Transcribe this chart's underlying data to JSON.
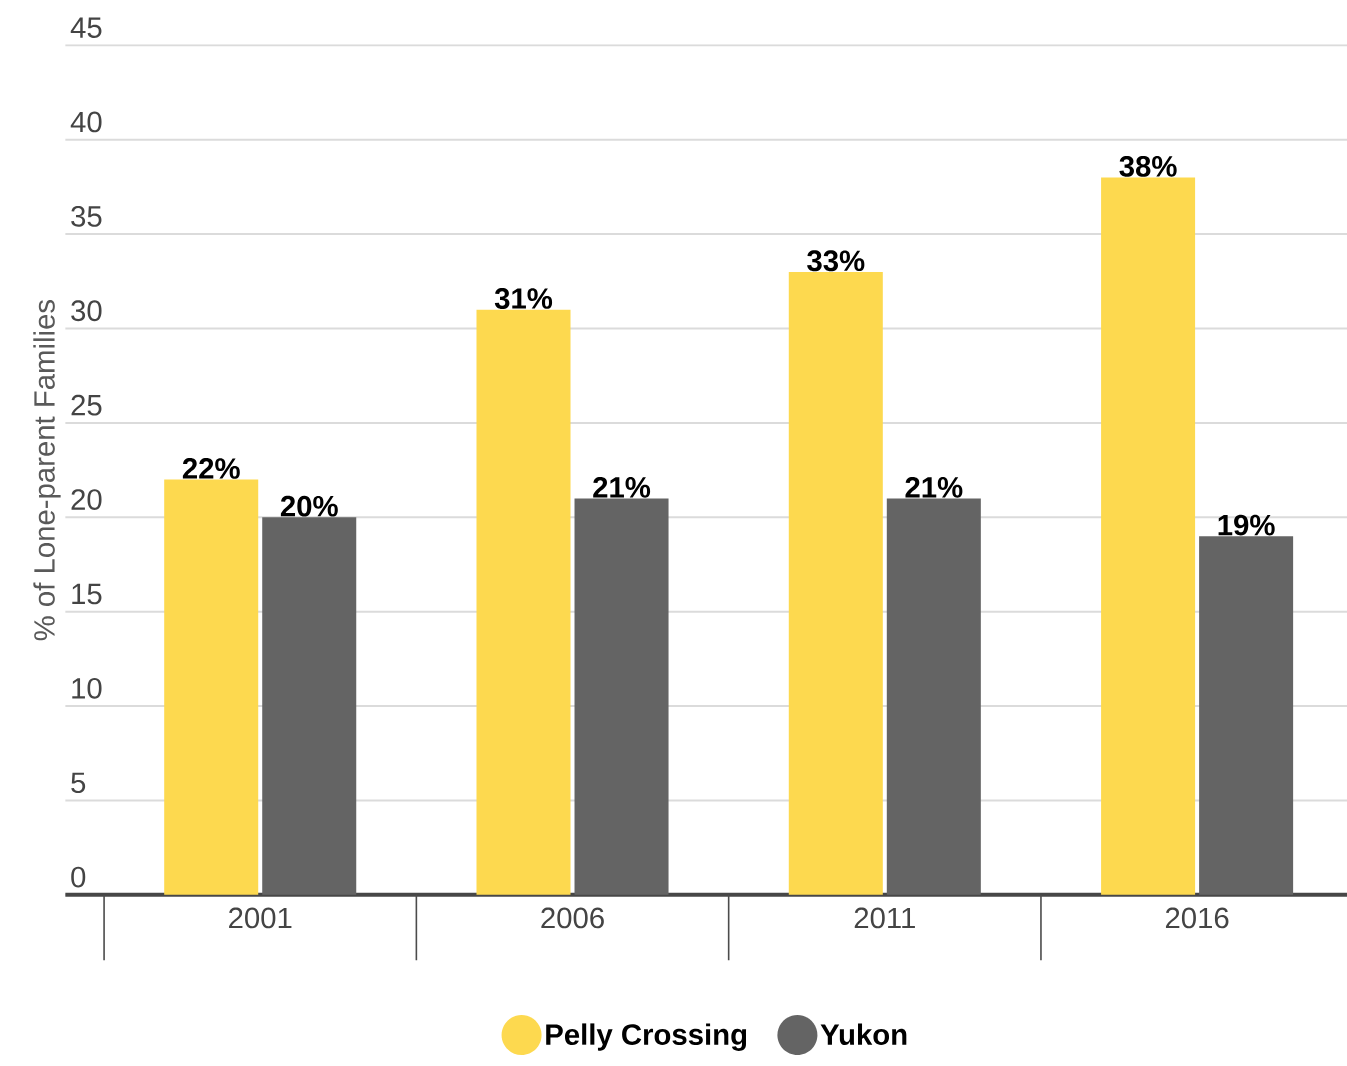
{
  "chart_data": {
    "type": "bar",
    "ylabel": "% of Lone-parent Families",
    "categories": [
      "2001",
      "2006",
      "2011",
      "2016"
    ],
    "series": [
      {
        "name": "Pelly Crossing",
        "color": "#fdd94f",
        "values": [
          22,
          31,
          33,
          38
        ],
        "value_labels": [
          "22%",
          "31%",
          "33%",
          "38%"
        ]
      },
      {
        "name": "Yukon",
        "color": "#646464",
        "values": [
          20,
          21,
          21,
          19
        ],
        "value_labels": [
          "20%",
          "21%",
          "21%",
          "19%"
        ]
      }
    ],
    "ylim": [
      0,
      45
    ],
    "yticks": [
      0,
      5,
      10,
      15,
      20,
      25,
      30,
      35,
      40,
      45
    ],
    "grid": "y",
    "legend": "bottom"
  }
}
